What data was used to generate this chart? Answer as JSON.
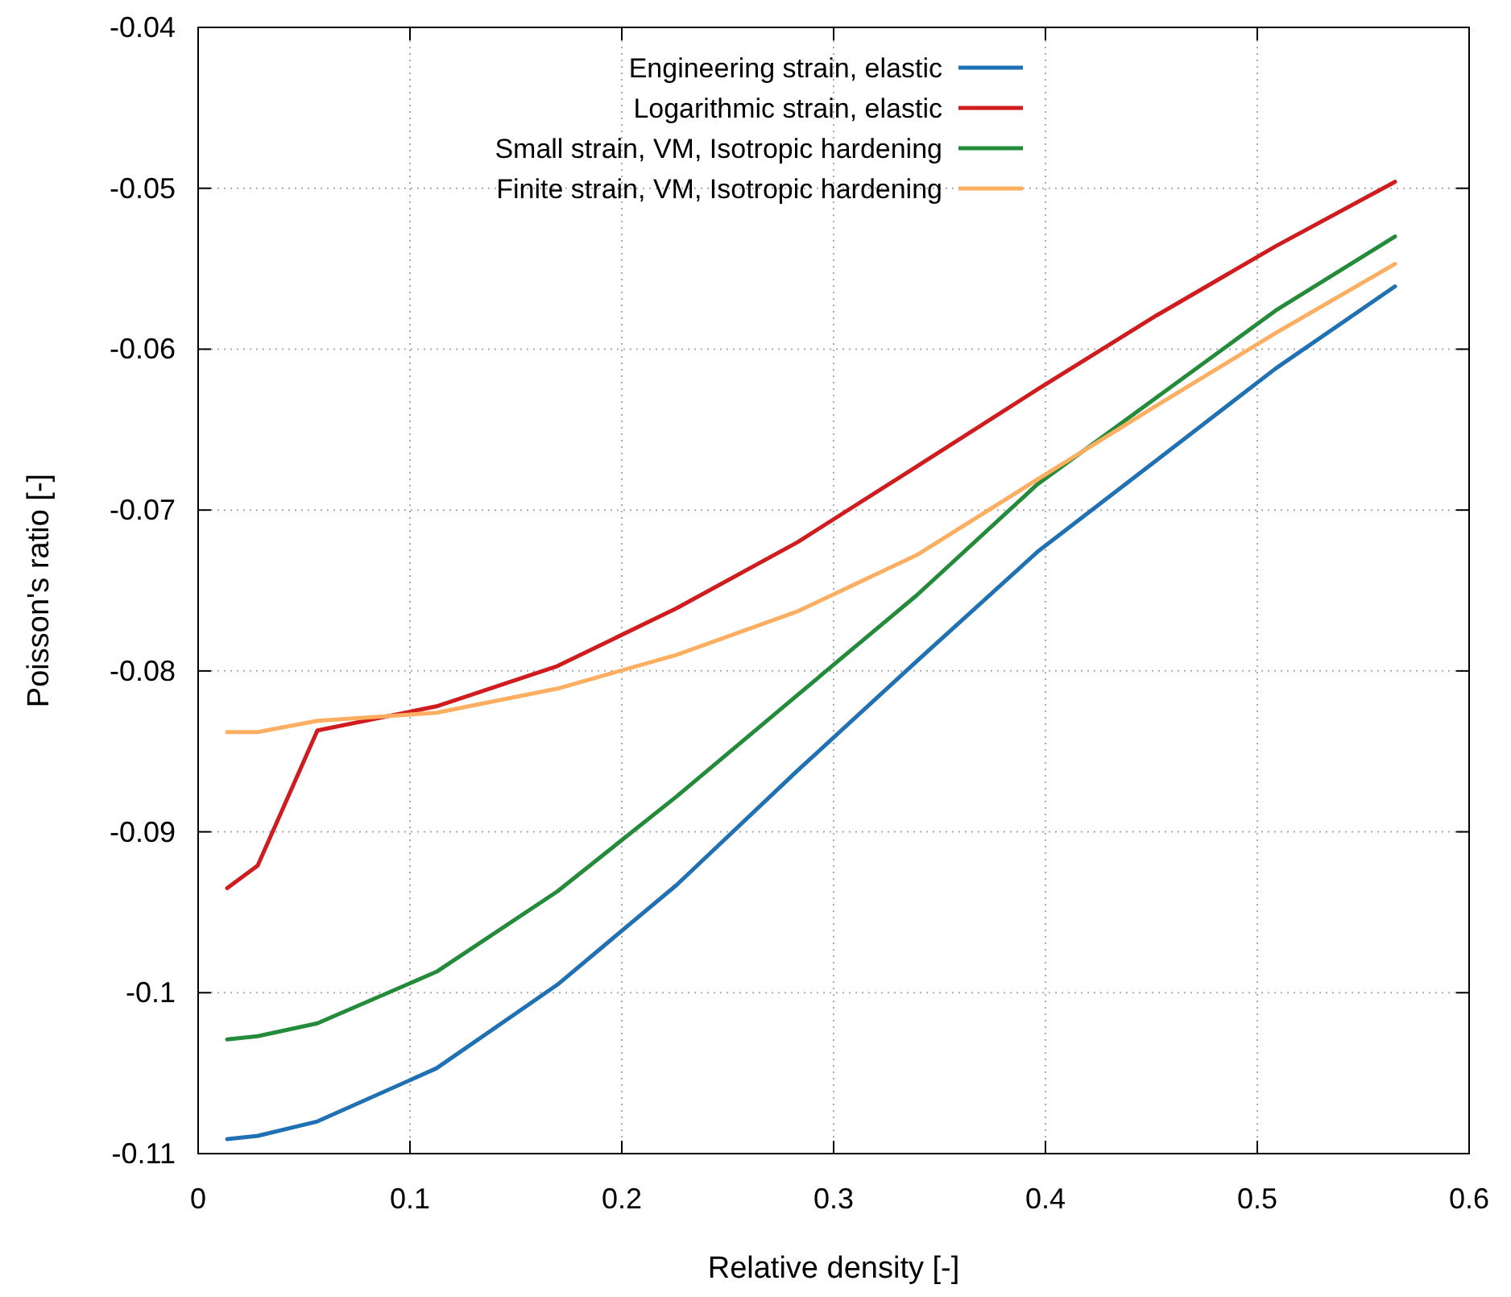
{
  "chart_data": {
    "type": "line",
    "xlabel": "Relative density [-]",
    "ylabel": "Poisson's ratio [-]",
    "x": [
      0.0137,
      0.0281,
      0.0563,
      0.1125,
      0.1696,
      0.2259,
      0.2829,
      0.3392,
      0.3962,
      0.4525,
      0.5087,
      0.565
    ],
    "xlim": [
      0,
      0.6
    ],
    "xticks": [
      0,
      0.1,
      0.2,
      0.3,
      0.4,
      0.5,
      0.6
    ],
    "ylim": [
      -0.11,
      -0.04
    ],
    "yticks": [
      -0.11,
      -0.1,
      -0.09,
      -0.08,
      -0.07,
      -0.06,
      -0.05,
      -0.04
    ],
    "grid": true,
    "legend": "top",
    "marker": "none",
    "line_style": "solid",
    "series": [
      {
        "name": "Engineering strain, elastic",
        "color": "#2070b4",
        "values": [
          -0.1091,
          -0.1089,
          -0.108,
          -0.1047,
          -0.0995,
          -0.0933,
          -0.0862,
          -0.0794,
          -0.0726,
          -0.0669,
          -0.0612,
          -0.0561
        ]
      },
      {
        "name": "Logarithmic strain, elastic",
        "color": "#d01c1e",
        "values": [
          -0.0935,
          -0.0921,
          -0.0837,
          -0.0822,
          -0.0797,
          -0.0761,
          -0.072,
          -0.0673,
          -0.0625,
          -0.0579,
          -0.0536,
          -0.0496
        ]
      },
      {
        "name": "Small strain, VM, Isotropic hardening",
        "color": "#238b3a",
        "values": [
          -0.1029,
          -0.1027,
          -0.1019,
          -0.0987,
          -0.0937,
          -0.0878,
          -0.0815,
          -0.0753,
          -0.0684,
          -0.063,
          -0.0576,
          -0.053
        ]
      },
      {
        "name": "Finite strain, VM, Isotropic hardening",
        "color": "#fdae61",
        "values": [
          -0.0838,
          -0.0838,
          -0.0831,
          -0.0826,
          -0.0811,
          -0.079,
          -0.0763,
          -0.0728,
          -0.0681,
          -0.0635,
          -0.059,
          -0.0547
        ]
      }
    ]
  }
}
